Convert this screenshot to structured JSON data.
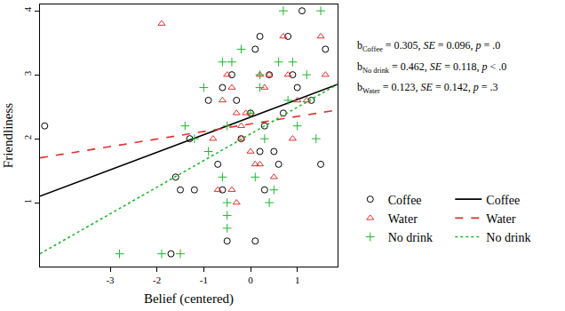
{
  "chart_data": {
    "type": "scatter",
    "x_label": "Belief (centered)",
    "y_label": "Friendliness",
    "xlim": [
      -4.5,
      1.86
    ],
    "ylim": [
      0,
      4.1
    ],
    "xticks": [
      -3,
      -2,
      -1,
      0,
      1
    ],
    "yticks": [
      1,
      2,
      3,
      4
    ],
    "grid": false,
    "legend": "right",
    "annotations": [
      {
        "symbol": "b",
        "subscript": "Coffee",
        "text": " = 0.305, SE = 0.096, p = .0"
      },
      {
        "symbol": "b",
        "subscript": "No drink",
        "text": " = 0.462, SE = 0.118, p < .0"
      },
      {
        "symbol": "b",
        "subscript": "Water",
        "text": " = 0.123, SE = 0.142, p = .3"
      }
    ],
    "series": [
      {
        "name": "Coffee",
        "type": "scatter",
        "color": "#000000",
        "marker": "circle-open",
        "x": [
          -4.4,
          -1.6,
          -1.5,
          -1.2,
          -1.3,
          -0.9,
          -0.7,
          -0.6,
          -0.5,
          -0.3,
          0.1,
          0.2,
          0,
          0.1,
          0.3,
          0.5,
          0.6,
          0.4,
          0.8,
          0.9,
          1.1,
          1.3,
          1.5,
          1.6,
          0.2,
          -0.2,
          0.7,
          -1.7,
          -0.4,
          1.0,
          0.3,
          -0.6
        ],
        "values": [
          2.2,
          1.4,
          1.2,
          1.2,
          2.0,
          2.6,
          1.6,
          1.2,
          0.4,
          2.6,
          3.4,
          3.6,
          2.4,
          0.4,
          2.2,
          1.8,
          1.6,
          3.0,
          3.6,
          3.0,
          4.0,
          2.6,
          1.6,
          3.4,
          1.8,
          2.0,
          2.4,
          0.2,
          3.0,
          2.8,
          1.2,
          2.8
        ]
      },
      {
        "name": "Coffee",
        "type": "line",
        "color": "#000000",
        "line_style": "solid",
        "x": [
          -4.5,
          1.86
        ],
        "values": [
          1.1,
          2.85
        ]
      },
      {
        "name": "Water",
        "type": "scatter",
        "color": "#e0302f",
        "marker": "triangle-up-open",
        "x": [
          -1.9,
          -0.5,
          -0.6,
          -0.4,
          -0.3,
          -0.2,
          -0.7,
          -0.4,
          -0.3,
          -0.2,
          0,
          0.1,
          0.2,
          0.3,
          0.4,
          0.5,
          0.7,
          0.8,
          0.9,
          1.0,
          1.2,
          1.5,
          1.6,
          -0.1,
          -0.8,
          0.2
        ],
        "values": [
          3.8,
          3.0,
          2.6,
          2.8,
          2.4,
          2.2,
          1.2,
          1.2,
          1.0,
          2.0,
          1.8,
          1.6,
          1.6,
          2.8,
          3.0,
          1.4,
          3.6,
          3.0,
          2.0,
          2.6,
          2.6,
          3.6,
          3.0,
          2.4,
          2.0,
          3.0
        ]
      },
      {
        "name": "Water",
        "type": "line",
        "color": "#e0302f",
        "line_style": "dash",
        "x": [
          -4.5,
          1.86
        ],
        "values": [
          1.7,
          2.45
        ]
      },
      {
        "name": "No drink",
        "type": "scatter",
        "color": "#22b530",
        "marker": "cross-thin",
        "x": [
          -2.8,
          -1.9,
          -1.5,
          -1.4,
          -1.2,
          -1.0,
          -0.9,
          -0.6,
          -0.5,
          -0.5,
          -0.5,
          -0.6,
          -0.5,
          -0.4,
          -0.2,
          0,
          0.1,
          0.2,
          0.2,
          0.3,
          0.4,
          0.5,
          0.6,
          0.7,
          0.8,
          0.9,
          1.0,
          1.2,
          1.5,
          1.4
        ],
        "values": [
          0.2,
          0.2,
          0.2,
          2.2,
          2.0,
          2.8,
          1.8,
          3.2,
          2.2,
          1.0,
          0.8,
          1.4,
          0.6,
          3.2,
          3.4,
          2.4,
          1.4,
          3.0,
          2.8,
          2.0,
          1.0,
          1.2,
          3.2,
          4.0,
          2.6,
          3.2,
          2.2,
          3.0,
          4.0,
          2.0
        ]
      },
      {
        "name": "No drink",
        "type": "line",
        "color": "#22b530",
        "line_style": "dot",
        "x": [
          -4.5,
          1.86
        ],
        "values": [
          0.2,
          2.85
        ]
      }
    ]
  }
}
